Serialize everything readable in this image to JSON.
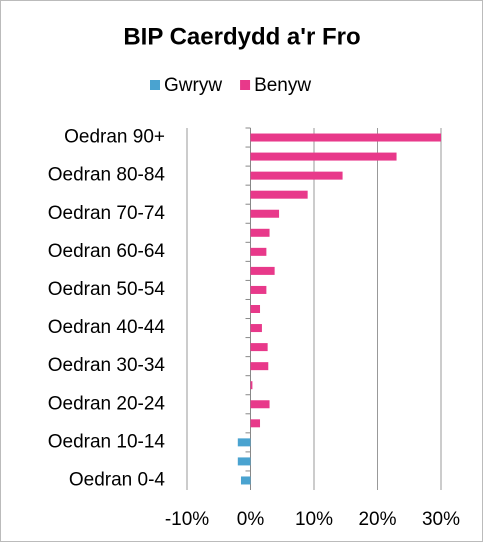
{
  "chart_data": {
    "type": "bar",
    "orientation": "horizontal",
    "title": "BIP Caerdydd a'r Fro",
    "categories": [
      "Oedran 90+",
      null,
      "Oedran 80-84",
      null,
      "Oedran 70-74",
      null,
      "Oedran 60-64",
      null,
      "Oedran 50-54",
      null,
      "Oedran 40-44",
      null,
      "Oedran 30-34",
      null,
      "Oedran 20-24",
      null,
      "Oedran 10-14",
      null,
      "Oedran 0-4"
    ],
    "series": [
      {
        "name": "Gwryw",
        "color": "#4aa3d0",
        "values": [
          null,
          null,
          null,
          null,
          null,
          null,
          null,
          null,
          null,
          null,
          null,
          null,
          null,
          null,
          null,
          null,
          -2,
          -2,
          -1.5
        ]
      },
      {
        "name": "Benyw",
        "color": "#e8398a",
        "values": [
          30,
          23,
          14.5,
          9,
          4.5,
          3,
          2.5,
          3.8,
          2.5,
          1.5,
          1.8,
          2.7,
          2.8,
          0.3,
          3,
          1.5,
          null,
          null,
          null
        ]
      }
    ],
    "xlim": [
      -10,
      30
    ],
    "xticks": [
      {
        "value": -10,
        "label": "-10%"
      },
      {
        "value": 0,
        "label": "0%"
      },
      {
        "value": 10,
        "label": "10%"
      },
      {
        "value": 20,
        "label": "20%"
      },
      {
        "value": 30,
        "label": "30%"
      }
    ],
    "grid": true,
    "legend": "top"
  }
}
